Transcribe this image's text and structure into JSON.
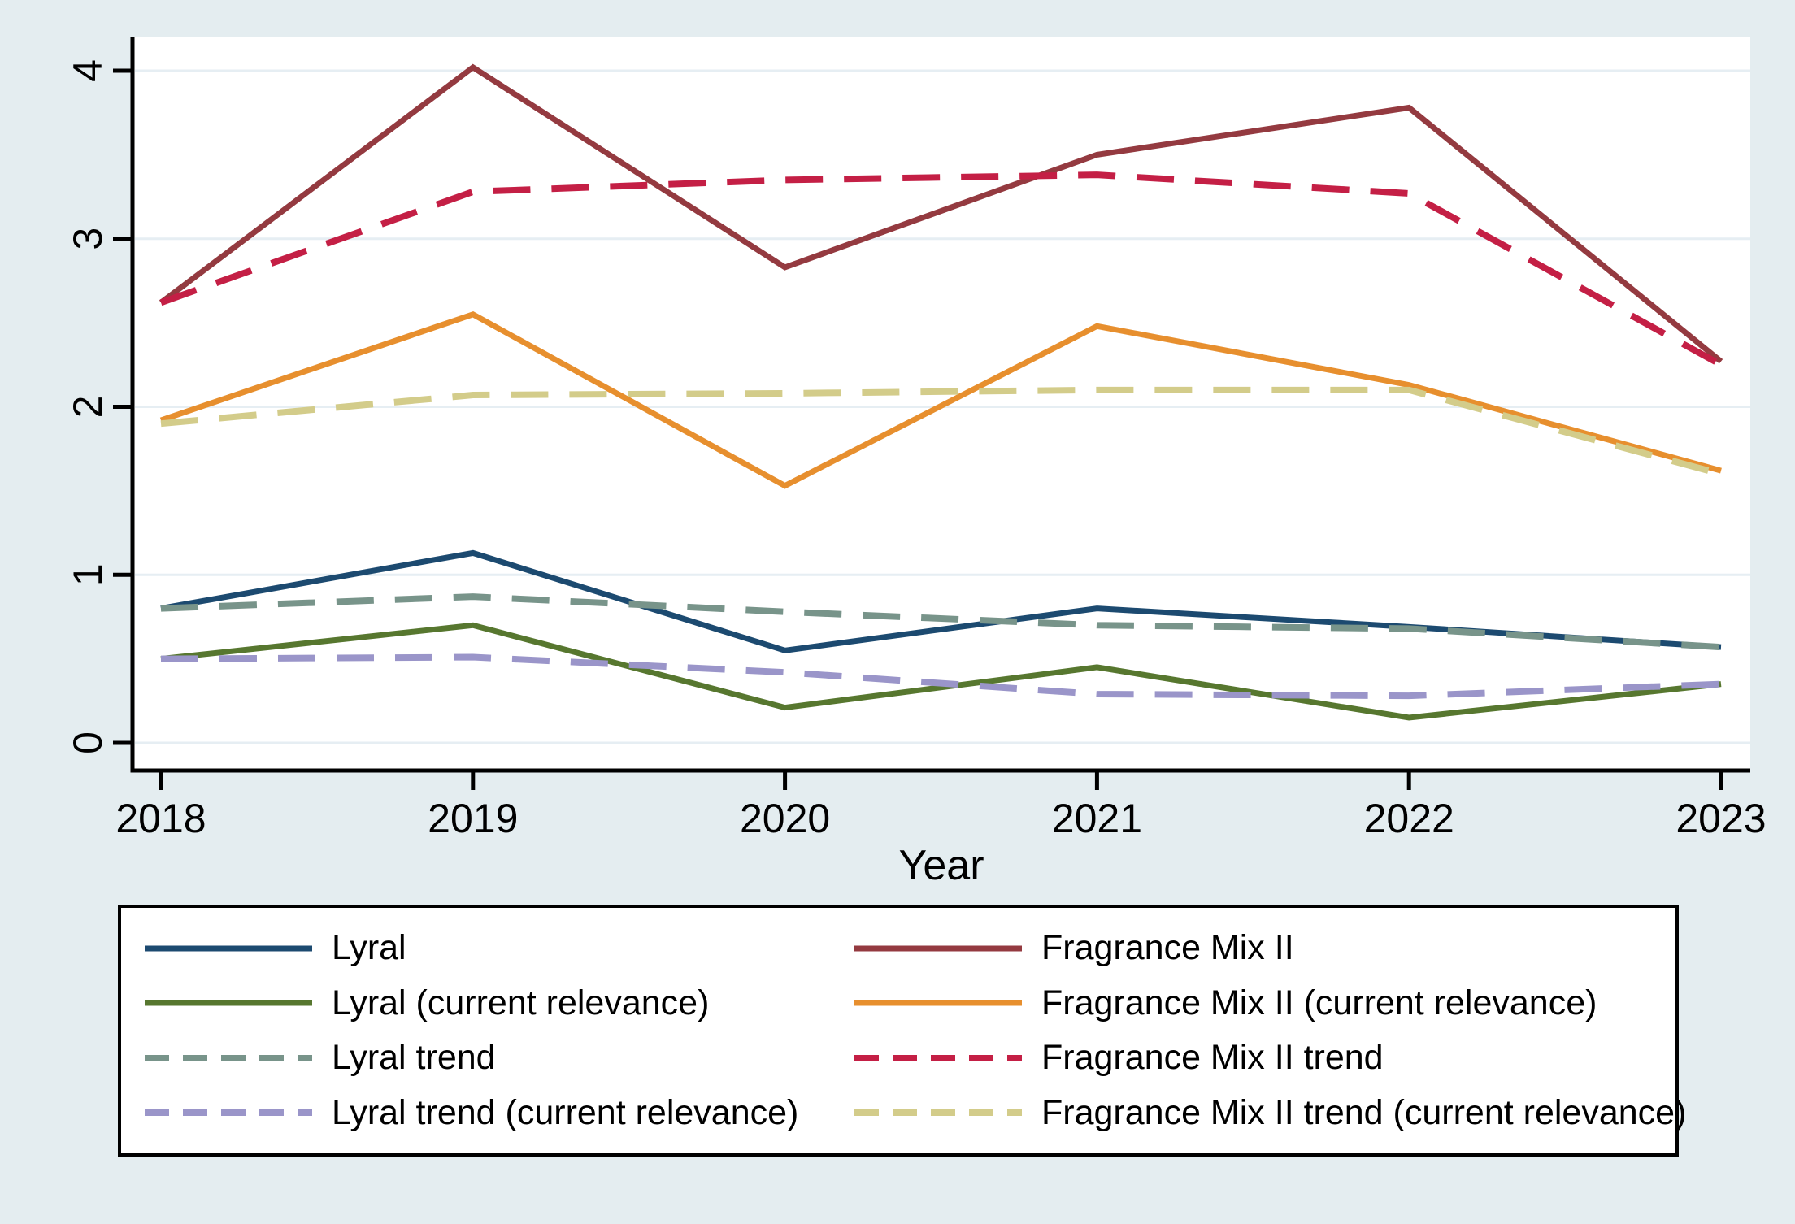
{
  "figure": {
    "background_color": "#e4edf0",
    "plot_background_color": "#ffffff",
    "gridline_color": "#e6eef3",
    "axis_color": "#000000",
    "text_color": "#000000"
  },
  "chart_data": {
    "type": "line",
    "title": "",
    "xlabel": "Year",
    "ylabel": "",
    "x": [
      2018,
      2019,
      2020,
      2021,
      2022,
      2023
    ],
    "xtick_labels": [
      "2018",
      "2019",
      "2020",
      "2021",
      "2022",
      "2023"
    ],
    "ytick_labels": [
      "0",
      "1",
      "2",
      "3",
      "4"
    ],
    "yticks": [
      0,
      1,
      2,
      3,
      4
    ],
    "ylim": [
      0,
      4
    ],
    "grid": "horizontal",
    "legend_position": "bottom",
    "legend_columns": 2,
    "series": [
      {
        "name": "Lyral",
        "color": "#1c4a70",
        "line_style": "solid",
        "values": [
          0.8,
          1.13,
          0.55,
          0.8,
          0.69,
          0.57
        ]
      },
      {
        "name": "Lyral (current relevance)",
        "color": "#57772f",
        "line_style": "solid",
        "values": [
          0.5,
          0.7,
          0.21,
          0.45,
          0.15,
          0.35
        ]
      },
      {
        "name": "Lyral trend",
        "color": "#78948a",
        "line_style": "dashed",
        "values": [
          0.8,
          0.87,
          0.78,
          0.7,
          0.68,
          0.57
        ]
      },
      {
        "name": "Lyral trend (current relevance)",
        "color": "#9a95c9",
        "line_style": "dashed",
        "values": [
          0.5,
          0.51,
          0.42,
          0.29,
          0.28,
          0.35
        ]
      },
      {
        "name": "Fragrance Mix II",
        "color": "#943a40",
        "line_style": "solid",
        "values": [
          2.62,
          4.02,
          2.83,
          3.5,
          3.78,
          2.27
        ]
      },
      {
        "name": "Fragrance Mix II (current relevance)",
        "color": "#e78f2e",
        "line_style": "solid",
        "values": [
          1.92,
          2.55,
          1.53,
          2.48,
          2.13,
          1.62
        ]
      },
      {
        "name": "Fragrance Mix II trend",
        "color": "#c41f45",
        "line_style": "dashed",
        "values": [
          2.62,
          3.28,
          3.35,
          3.38,
          3.27,
          2.25
        ]
      },
      {
        "name": "Fragrance Mix II trend (current relevance)",
        "color": "#d3cc8a",
        "line_style": "dashed",
        "values": [
          1.9,
          2.07,
          2.08,
          2.1,
          2.1,
          1.6
        ]
      }
    ]
  }
}
